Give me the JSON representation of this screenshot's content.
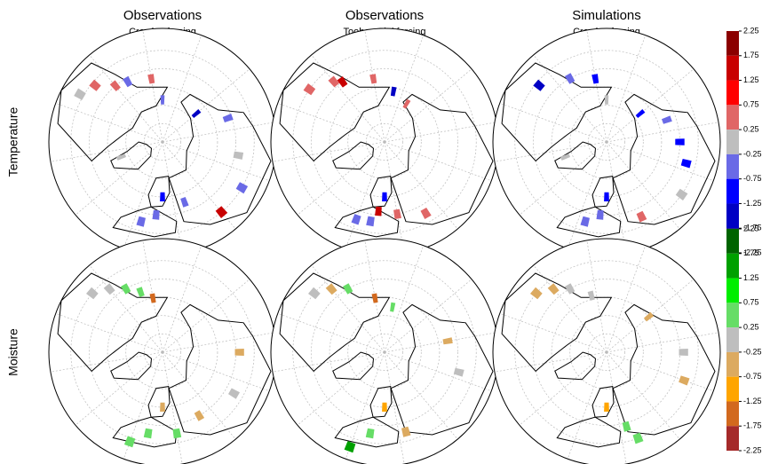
{
  "columns": [
    {
      "title": "Observations",
      "subtitle": "Crowley forcing"
    },
    {
      "title": "Observations",
      "subtitle": "Toohey Sigl forcing"
    },
    {
      "title": "Simulations",
      "subtitle": "Crowley forcing"
    }
  ],
  "rows": [
    {
      "label": "Temperature",
      "colorbar": {
        "ticks": [
          2.25,
          1.75,
          1.25,
          0.75,
          0.25,
          -0.25,
          -0.75,
          -1.25,
          -1.75,
          -2.25
        ],
        "colors": [
          "#8b0000",
          "#c80000",
          "#ff0000",
          "#e06666",
          "#bebebe",
          "#6a6ae6",
          "#0000ff",
          "#0000c4",
          "#000080"
        ]
      },
      "maps": [
        {
          "cells": [
            {
              "lon": -150,
              "lat": 55,
              "value": 0.5
            },
            {
              "lon": -130,
              "lat": 52,
              "value": -0.5
            },
            {
              "lon": -120,
              "lat": 50,
              "value": 0.5
            },
            {
              "lon": -110,
              "lat": 42,
              "value": 0.5
            },
            {
              "lon": -100,
              "lat": 38,
              "value": 0
            },
            {
              "lon": -160,
              "lat": 67,
              "value": -0.5
            },
            {
              "lon": 150,
              "lat": 66,
              "value": -1.5
            },
            {
              "lon": 130,
              "lat": 52,
              "value": -0.5
            },
            {
              "lon": 100,
              "lat": 48,
              "value": 0
            },
            {
              "lon": 80,
              "lat": 40,
              "value": -0.5
            },
            {
              "lon": 60,
              "lat": 40,
              "value": 1.5
            },
            {
              "lon": 20,
              "lat": 60,
              "value": -1
            },
            {
              "lon": 15,
              "lat": 50,
              "value": -0.5
            },
            {
              "lon": 5,
              "lat": 45,
              "value": -0.5
            },
            {
              "lon": 40,
              "lat": 55,
              "value": -0.5
            },
            {
              "lon": -50,
              "lat": 66,
              "value": 0
            }
          ]
        },
        {
          "cells": [
            {
              "lon": -150,
              "lat": 55,
              "value": 0.5
            },
            {
              "lon": -125,
              "lat": 50,
              "value": 1.5
            },
            {
              "lon": -120,
              "lat": 47,
              "value": 0.5
            },
            {
              "lon": -105,
              "lat": 40,
              "value": 0.5
            },
            {
              "lon": -170,
              "lat": 62,
              "value": -1.5
            },
            {
              "lon": 170,
              "lat": 66,
              "value": 0.5
            },
            {
              "lon": 20,
              "lat": 60,
              "value": -1
            },
            {
              "lon": 15,
              "lat": 52,
              "value": 1.5
            },
            {
              "lon": 10,
              "lat": 46,
              "value": -0.5
            },
            {
              "lon": 30,
              "lat": 50,
              "value": 0.5
            },
            {
              "lon": 50,
              "lat": 45,
              "value": 0.5
            },
            {
              "lon": 0,
              "lat": 45,
              "value": -0.5
            }
          ]
        },
        {
          "cells": [
            {
              "lon": -150,
              "lat": 55,
              "value": -1
            },
            {
              "lon": -130,
              "lat": 50,
              "value": -0.5
            },
            {
              "lon": -110,
              "lat": 42,
              "value": -1.5
            },
            {
              "lon": -160,
              "lat": 67,
              "value": 0
            },
            {
              "lon": 150,
              "lat": 66,
              "value": -1
            },
            {
              "lon": 130,
              "lat": 55,
              "value": -0.5
            },
            {
              "lon": 110,
              "lat": 50,
              "value": -1
            },
            {
              "lon": 95,
              "lat": 45,
              "value": -1
            },
            {
              "lon": 75,
              "lat": 40,
              "value": 0
            },
            {
              "lon": 20,
              "lat": 60,
              "value": -1
            },
            {
              "lon": 15,
              "lat": 50,
              "value": -0.5
            },
            {
              "lon": 5,
              "lat": 45,
              "value": -0.5
            },
            {
              "lon": 45,
              "lat": 45,
              "value": 0.5
            },
            {
              "lon": -50,
              "lat": 66,
              "value": 0
            }
          ]
        }
      ]
    },
    {
      "label": "Moisture",
      "colorbar": {
        "ticks": [
          2.25,
          1.75,
          1.25,
          0.75,
          0.25,
          -0.25,
          -0.75,
          -1.25,
          -1.75,
          -2.25
        ],
        "colors": [
          "#006400",
          "#00a000",
          "#00ee00",
          "#66dd66",
          "#bebebe",
          "#dcaa60",
          "#ffa500",
          "#d2691e",
          "#a52a2a"
        ]
      },
      "maps": [
        {
          "cells": [
            {
              "lon": -130,
              "lat": 50,
              "value": 0.5
            },
            {
              "lon": -120,
              "lat": 45,
              "value": 0
            },
            {
              "lon": -110,
              "lat": 40,
              "value": 0
            },
            {
              "lon": -140,
              "lat": 55,
              "value": 0.5
            },
            {
              "lon": -150,
              "lat": 60,
              "value": -1.5
            },
            {
              "lon": 110,
              "lat": 48,
              "value": -0.5
            },
            {
              "lon": 80,
              "lat": 45,
              "value": 0
            },
            {
              "lon": 20,
              "lat": 60,
              "value": -0.5
            },
            {
              "lon": 10,
              "lat": 45,
              "value": 0.5
            },
            {
              "lon": 30,
              "lat": 45,
              "value": 0.5
            },
            {
              "lon": 0,
              "lat": 38,
              "value": 0.5
            },
            {
              "lon": 50,
              "lat": 50,
              "value": -0.5
            }
          ]
        },
        {
          "cells": [
            {
              "lon": -130,
              "lat": 50,
              "value": 0.5
            },
            {
              "lon": -120,
              "lat": 45,
              "value": -0.5
            },
            {
              "lon": -110,
              "lat": 40,
              "value": 0
            },
            {
              "lon": -150,
              "lat": 60,
              "value": -1.5
            },
            {
              "lon": -170,
              "lat": 65,
              "value": 0.5
            },
            {
              "lon": 120,
              "lat": 55,
              "value": -0.5
            },
            {
              "lon": 95,
              "lat": 48,
              "value": 0
            },
            {
              "lon": 20,
              "lat": 60,
              "value": -1
            },
            {
              "lon": 10,
              "lat": 45,
              "value": 0.5
            },
            {
              "lon": 0,
              "lat": 35,
              "value": 1.5
            },
            {
              "lon": 35,
              "lat": 45,
              "value": -0.5
            }
          ]
        },
        {
          "cells": [
            {
              "lon": -130,
              "lat": 50,
              "value": 0
            },
            {
              "lon": -120,
              "lat": 45,
              "value": -0.5
            },
            {
              "lon": -110,
              "lat": 40,
              "value": -0.5
            },
            {
              "lon": -145,
              "lat": 58,
              "value": 0
            },
            {
              "lon": 150,
              "lat": 60,
              "value": -0.5
            },
            {
              "lon": 110,
              "lat": 48,
              "value": 0
            },
            {
              "lon": 90,
              "lat": 45,
              "value": -0.5
            },
            {
              "lon": 20,
              "lat": 60,
              "value": -1
            },
            {
              "lon": 35,
              "lat": 48,
              "value": 0.5
            },
            {
              "lon": 40,
              "lat": 40,
              "value": 0.5
            }
          ]
        }
      ]
    }
  ]
}
